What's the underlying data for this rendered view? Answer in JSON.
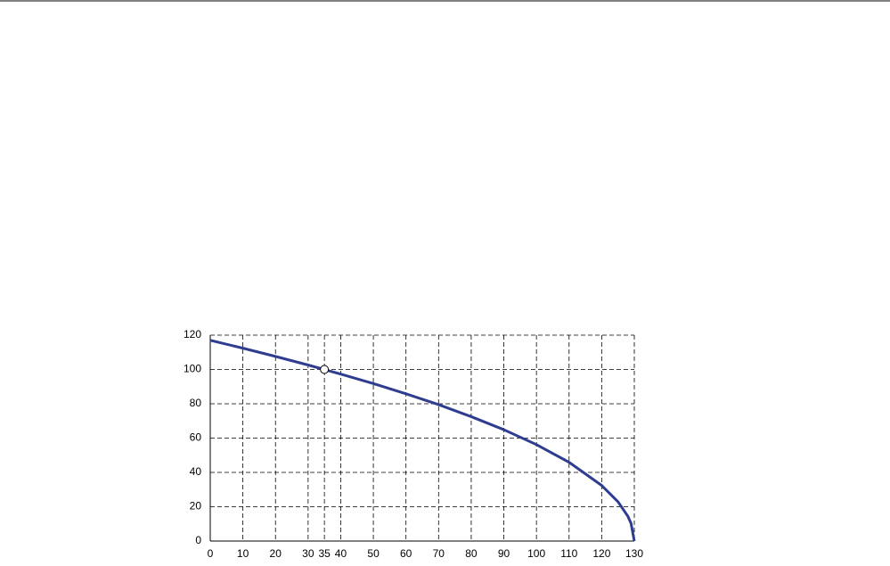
{
  "chart_data": {
    "type": "line",
    "x": [
      0,
      10,
      20,
      30,
      40,
      50,
      60,
      70,
      80,
      90,
      100,
      110,
      120,
      125,
      128,
      129,
      130
    ],
    "series": [
      {
        "color": "#2e3d8f",
        "values": [
          117.0,
          112.4,
          107.6,
          102.6,
          97.3,
          91.8,
          85.8,
          79.5,
          72.5,
          64.9,
          56.2,
          45.9,
          32.4,
          22.9,
          14.5,
          10.3,
          0
        ]
      }
    ],
    "marker": {
      "x": 35,
      "y": 100
    },
    "xlim": [
      0,
      130
    ],
    "xticks": [
      0,
      10,
      20,
      30,
      35,
      40,
      50,
      60,
      70,
      80,
      90,
      100,
      110,
      120,
      130
    ],
    "ylim": [
      0,
      120
    ],
    "yticks": [
      0,
      20,
      40,
      60,
      80,
      100,
      120
    ],
    "grid": true
  }
}
